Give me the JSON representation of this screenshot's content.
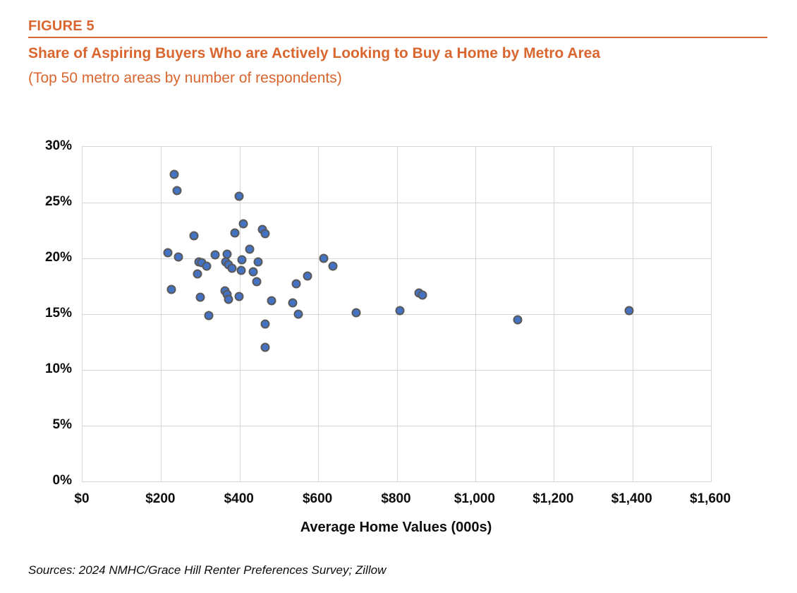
{
  "figure": {
    "label": "FIGURE 5",
    "title": "Share of Aspiring Buyers Who are Actively Looking to Buy a Home by Metro Area",
    "subtitle": "(Top 50 metro areas by number of respondents)"
  },
  "source_note": "Sources: 2024 NMHC/Grace Hill Renter Preferences Survey; Zillow",
  "colors": {
    "accent_orange": "#D9652F",
    "dot_fill": "#4472C4",
    "dot_border": "#595959",
    "gridline": "#D6D6D6",
    "text": "#0d0d0d"
  },
  "chart_data": {
    "type": "scatter",
    "title": "Share of Aspiring Buyers Who are Actively Looking to Buy a Home by Metro Area",
    "subtitle": "(Top 50 metro areas by number of respondents)",
    "xlabel": "Average Home Values (000s)",
    "ylabel": "",
    "xlim": [
      0,
      1600
    ],
    "ylim": [
      0,
      30
    ],
    "grid": true,
    "legend": "none",
    "x_ticks": [
      0,
      200,
      400,
      600,
      800,
      1000,
      1200,
      1400,
      1600
    ],
    "x_tick_labels": [
      "$0",
      "$200",
      "$400",
      "$600",
      "$800",
      "$1,000",
      "$1,200",
      "$1,400",
      "$1,600"
    ],
    "y_ticks": [
      0,
      5,
      10,
      15,
      20,
      25,
      30
    ],
    "y_tick_labels": [
      "0%",
      "5%",
      "10%",
      "15%",
      "20%",
      "25%",
      "30%"
    ],
    "points": [
      {
        "x": 234,
        "y": 27.5
      },
      {
        "x": 241,
        "y": 26.1
      },
      {
        "x": 399,
        "y": 25.6
      },
      {
        "x": 410,
        "y": 23.1
      },
      {
        "x": 388,
        "y": 22.3
      },
      {
        "x": 458,
        "y": 22.6
      },
      {
        "x": 465,
        "y": 22.2
      },
      {
        "x": 284,
        "y": 22.0
      },
      {
        "x": 426,
        "y": 20.8
      },
      {
        "x": 217,
        "y": 20.5
      },
      {
        "x": 244,
        "y": 20.1
      },
      {
        "x": 338,
        "y": 20.3
      },
      {
        "x": 368,
        "y": 20.4
      },
      {
        "x": 406,
        "y": 19.9
      },
      {
        "x": 447,
        "y": 19.7
      },
      {
        "x": 296,
        "y": 19.7
      },
      {
        "x": 304,
        "y": 19.6
      },
      {
        "x": 316,
        "y": 19.3
      },
      {
        "x": 365,
        "y": 19.7
      },
      {
        "x": 372,
        "y": 19.4
      },
      {
        "x": 381,
        "y": 19.1
      },
      {
        "x": 404,
        "y": 18.9
      },
      {
        "x": 435,
        "y": 18.8
      },
      {
        "x": 293,
        "y": 18.6
      },
      {
        "x": 443,
        "y": 17.9
      },
      {
        "x": 227,
        "y": 17.2
      },
      {
        "x": 300,
        "y": 16.5
      },
      {
        "x": 363,
        "y": 17.1
      },
      {
        "x": 368,
        "y": 16.8
      },
      {
        "x": 371,
        "y": 16.3
      },
      {
        "x": 398,
        "y": 16.6
      },
      {
        "x": 321,
        "y": 14.9
      },
      {
        "x": 614,
        "y": 20.0
      },
      {
        "x": 638,
        "y": 19.3
      },
      {
        "x": 573,
        "y": 18.4
      },
      {
        "x": 545,
        "y": 17.7
      },
      {
        "x": 481,
        "y": 16.2
      },
      {
        "x": 535,
        "y": 16.0
      },
      {
        "x": 549,
        "y": 15.0
      },
      {
        "x": 465,
        "y": 14.1
      },
      {
        "x": 465,
        "y": 12.0
      },
      {
        "x": 697,
        "y": 15.1
      },
      {
        "x": 808,
        "y": 15.3
      },
      {
        "x": 857,
        "y": 16.9
      },
      {
        "x": 865,
        "y": 16.7
      },
      {
        "x": 1108,
        "y": 14.5
      },
      {
        "x": 1392,
        "y": 15.3
      }
    ]
  }
}
